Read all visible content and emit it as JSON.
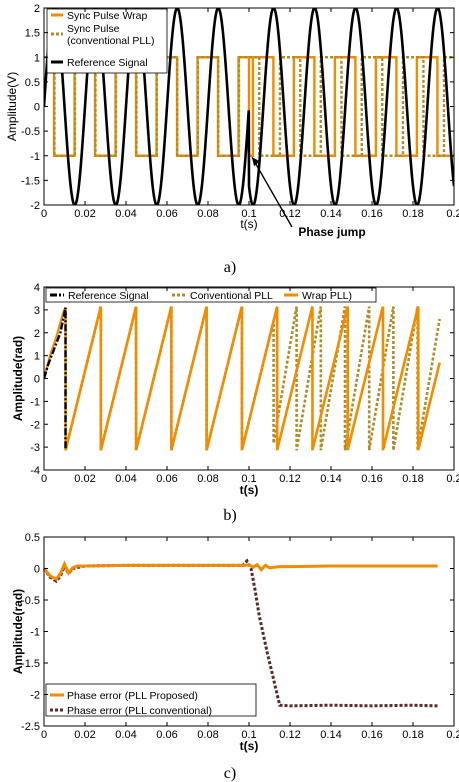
{
  "chart_data": [
    {
      "type": "line",
      "xlabel": "t(s)",
      "ylabel": "Amplitude(V)",
      "xlim": [
        0,
        0.2
      ],
      "ylim": [
        -2,
        2
      ],
      "xticks": [
        "0",
        "0.02",
        "0.04",
        "0.06",
        "0.08",
        "0.1",
        "0.12",
        "0.14",
        "0.16",
        "0.18",
        "0.2"
      ],
      "yticks": [
        "2",
        "1.5",
        "1",
        "0.5",
        "0",
        "-0.5",
        "-1",
        "-1.5",
        "-2"
      ],
      "legend_position": "top-left",
      "grid": false,
      "annotation": "Phase jump",
      "annotation_point": [
        0.1,
        -0.95
      ],
      "panel_label": "a)",
      "signal_frequency_hz": 50,
      "phase_jump_time": 0.1,
      "series": [
        {
          "name": "Sync Pulse Wrap",
          "color": "#f08c00",
          "style": "solid",
          "square_levels": [
            -1,
            1
          ],
          "period": 0.02,
          "phase_after_jump": -2.2
        },
        {
          "name": "Sync Pulse\n(conventional PLL)",
          "color": "#b08c28",
          "style": "dotted",
          "square_levels": [
            -1,
            1
          ],
          "period": 0.02,
          "phase_after_jump": 0
        },
        {
          "name": "Reference Signal",
          "color": "#000000",
          "style": "solid",
          "amplitude": 2,
          "period": 0.02,
          "phase_after_jump": -2.2
        }
      ]
    },
    {
      "type": "line",
      "xlabel": "t(s)",
      "ylabel": "Amplitude(rad)",
      "xlim": [
        0,
        0.2
      ],
      "ylim": [
        -4,
        4
      ],
      "xticks": [
        "0",
        "0.02",
        "0.04",
        "0.06",
        "0.08",
        "0.1",
        "0.12",
        "0.14",
        "0.16",
        "0.18",
        "0.2"
      ],
      "yticks": [
        "4",
        "3",
        "2",
        "1",
        "0",
        "-1",
        "-2",
        "-3",
        "-4"
      ],
      "legend_position": "top",
      "grid": false,
      "panel_label": "b)",
      "phase_jump_time": 0.1,
      "series": [
        {
          "name": "Reference Signal",
          "color": "#000000",
          "style": "dash-dot"
        },
        {
          "name": "Conventional PLL",
          "color": "#b08c28",
          "style": "dotted"
        },
        {
          "name": "Wrap PLL)",
          "color": "#f08c00",
          "style": "solid"
        }
      ]
    },
    {
      "type": "line",
      "xlabel": "t(s)",
      "ylabel": "Amplitude(rad)",
      "xlim": [
        0,
        0.2
      ],
      "ylim": [
        -2.5,
        0.5
      ],
      "xticks": [
        "0",
        "0.02",
        "0.04",
        "0.06",
        "0.08",
        "0.1",
        "0.12",
        "0.14",
        "0.16",
        "0.18",
        "0.2"
      ],
      "yticks": [
        "0.5",
        "0",
        "-0.5",
        "-1",
        "-1.5",
        "-2",
        "-2.5"
      ],
      "legend_position": "bottom-left",
      "grid": false,
      "panel_label": "c)",
      "series": [
        {
          "name": "Phase error (PLL Proposed)",
          "color": "#f08c00",
          "style": "solid",
          "x": [
            0,
            0.003,
            0.006,
            0.008,
            0.01,
            0.012,
            0.014,
            0.016,
            0.02,
            0.04,
            0.06,
            0.08,
            0.098,
            0.1,
            0.102,
            0.104,
            0.106,
            0.108,
            0.11,
            0.115,
            0.12,
            0.14,
            0.16,
            0.18,
            0.192
          ],
          "values": [
            0,
            -0.12,
            -0.17,
            -0.08,
            0.07,
            -0.07,
            0.01,
            0.04,
            0.04,
            0.05,
            0.05,
            0.05,
            0.05,
            0.06,
            0.02,
            0.06,
            -0.02,
            0.05,
            0.01,
            0.03,
            0.03,
            0.04,
            0.04,
            0.04,
            0.04
          ]
        },
        {
          "name": "Phase error (PLL conventional)",
          "color": "#5a2828",
          "style": "dotted",
          "x": [
            0,
            0.003,
            0.006,
            0.008,
            0.01,
            0.012,
            0.014,
            0.02,
            0.04,
            0.06,
            0.08,
            0.097,
            0.099,
            0.101,
            0.103,
            0.105,
            0.107,
            0.109,
            0.111,
            0.113,
            0.115,
            0.12,
            0.14,
            0.16,
            0.18,
            0.192
          ],
          "values": [
            0,
            -0.14,
            -0.2,
            -0.12,
            0.04,
            -0.08,
            0.0,
            0.04,
            0.05,
            0.05,
            0.05,
            0.05,
            0.12,
            0.0,
            -0.35,
            -0.75,
            -1.05,
            -1.35,
            -1.62,
            -1.9,
            -2.17,
            -2.18,
            -2.17,
            -2.18,
            -2.17,
            -2.18
          ]
        }
      ]
    }
  ]
}
